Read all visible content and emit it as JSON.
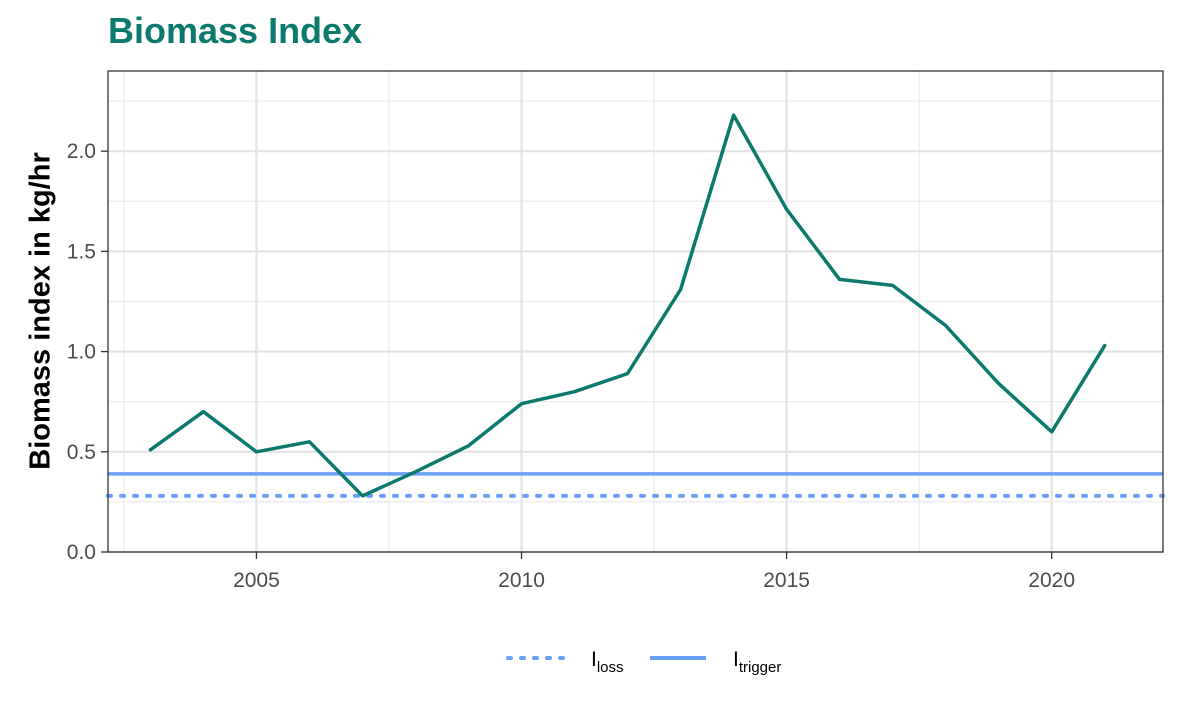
{
  "chart_data": {
    "type": "line",
    "title": "Biomass Index",
    "ylabel": "Biomass index in kg/hr",
    "xlabel": "",
    "xlim": [
      2002.2,
      2022.1
    ],
    "ylim": [
      0,
      2.4
    ],
    "grid": true,
    "x_ticks": [
      "2005",
      "2010",
      "2015",
      "2020"
    ],
    "y_ticks": [
      "0.0",
      "0.5",
      "1.0",
      "1.5",
      "2.0"
    ],
    "series": [
      {
        "color": "#0b7a6d",
        "x": [
          2003,
          2004,
          2005,
          2006,
          2007,
          2008,
          2009,
          2010,
          2011,
          2012,
          2013,
          2014,
          2015,
          2016,
          2017,
          2018,
          2019,
          2020,
          2021
        ],
        "values": [
          0.51,
          0.7,
          0.5,
          0.55,
          0.28,
          0.4,
          0.53,
          0.74,
          0.8,
          0.89,
          1.31,
          2.18,
          1.71,
          1.36,
          1.33,
          1.13,
          0.84,
          0.6,
          1.03
        ]
      }
    ],
    "reference_lines": [
      {
        "label_main": "I",
        "label_sub": "loss",
        "value": 0.28,
        "color": "#6ba0f5",
        "style": "dotted"
      },
      {
        "label_main": "I",
        "label_sub": "trigger",
        "value": 0.39,
        "color": "#6ba0f5",
        "style": "solid"
      }
    ],
    "legend_position": "bottom"
  }
}
